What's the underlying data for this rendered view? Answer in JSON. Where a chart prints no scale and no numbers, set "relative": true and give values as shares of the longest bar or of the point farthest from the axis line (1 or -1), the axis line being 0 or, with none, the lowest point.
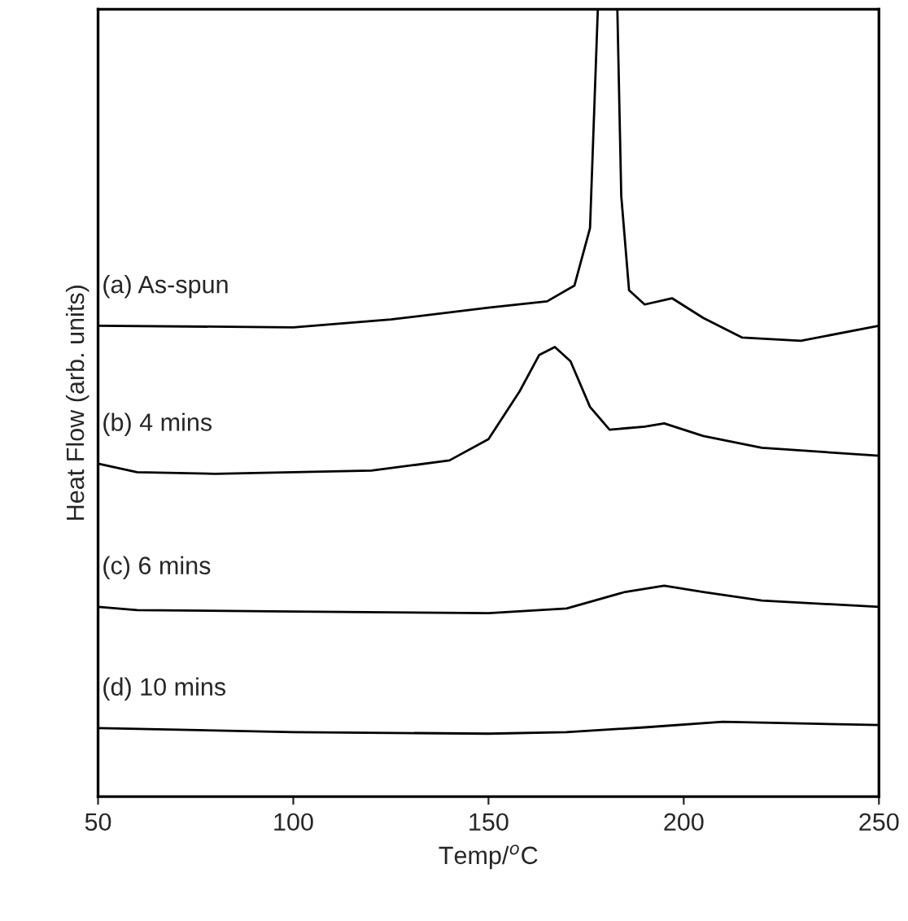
{
  "chart_data": {
    "type": "line",
    "relative": true,
    "xlabel": "Temp/$^{o}$C",
    "ylabel": "Heat Flow (arb. units)",
    "xlim": [
      50,
      250
    ],
    "xticks": [
      50,
      100,
      150,
      200,
      250
    ],
    "tick_labels": "x",
    "grid": false,
    "legend": false,
    "marker": "none",
    "line_style": "solid",
    "annotations": [
      "(a) As-spun",
      "(b) 4 mins",
      "(c) 6 mins",
      "(d) 10 mins"
    ],
    "series": [
      {
        "color": "#000000",
        "x": [
          50,
          100,
          125,
          150,
          165,
          172,
          176,
          178,
          183,
          184,
          186,
          190,
          197,
          205,
          215,
          230,
          250
        ],
        "values": [
          0.598,
          0.596,
          0.606,
          0.621,
          0.629,
          0.649,
          0.722,
          1.0,
          1.0,
          0.763,
          0.643,
          0.625,
          0.633,
          0.608,
          0.583,
          0.579,
          0.598
        ]
      },
      {
        "color": "#000000",
        "x": [
          50,
          60,
          80,
          120,
          140,
          150,
          158,
          163,
          167,
          171,
          176,
          181,
          190,
          195,
          205,
          220,
          250
        ],
        "values": [
          0.423,
          0.412,
          0.41,
          0.414,
          0.427,
          0.454,
          0.515,
          0.561,
          0.571,
          0.553,
          0.495,
          0.466,
          0.47,
          0.474,
          0.458,
          0.443,
          0.433
        ]
      },
      {
        "color": "#000000",
        "x": [
          50,
          60,
          100,
          150,
          170,
          185,
          195,
          205,
          220,
          250
        ],
        "values": [
          0.241,
          0.237,
          0.235,
          0.233,
          0.239,
          0.26,
          0.268,
          0.26,
          0.249,
          0.241
        ]
      },
      {
        "color": "#000000",
        "x": [
          50,
          100,
          150,
          170,
          190,
          210,
          250
        ],
        "values": [
          0.087,
          0.082,
          0.08,
          0.082,
          0.088,
          0.095,
          0.091
        ]
      }
    ]
  }
}
